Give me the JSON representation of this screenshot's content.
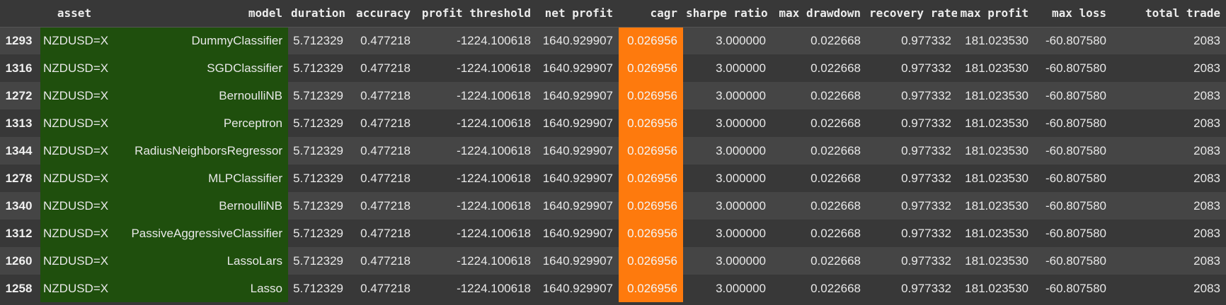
{
  "colors": {
    "background": "#383838",
    "row_alt": "#454545",
    "highlight_green": "#1f4f0d",
    "highlight_orange": "#fe7a0d"
  },
  "columns": [
    "",
    "asset",
    "model",
    "duration",
    "accuracy",
    "profit threshold",
    "net profit",
    "cagr",
    "sharpe ratio",
    "max drawdown",
    "recovery rate",
    "max profit",
    "max loss",
    "total trade"
  ],
  "rows": [
    {
      "index": "1293",
      "asset": "NZDUSD=X",
      "model": "DummyClassifier",
      "duration": "5.712329",
      "accuracy": "0.477218",
      "profit_threshold": "-1224.100618",
      "net_profit": "1640.929907",
      "cagr": "0.026956",
      "sharpe_ratio": "3.000000",
      "max_drawdown": "0.022668",
      "recovery_rate": "0.977332",
      "max_profit": "181.023530",
      "max_loss": "-60.807580",
      "total_trade": "2083"
    },
    {
      "index": "1316",
      "asset": "NZDUSD=X",
      "model": "SGDClassifier",
      "duration": "5.712329",
      "accuracy": "0.477218",
      "profit_threshold": "-1224.100618",
      "net_profit": "1640.929907",
      "cagr": "0.026956",
      "sharpe_ratio": "3.000000",
      "max_drawdown": "0.022668",
      "recovery_rate": "0.977332",
      "max_profit": "181.023530",
      "max_loss": "-60.807580",
      "total_trade": "2083"
    },
    {
      "index": "1272",
      "asset": "NZDUSD=X",
      "model": "BernoulliNB",
      "duration": "5.712329",
      "accuracy": "0.477218",
      "profit_threshold": "-1224.100618",
      "net_profit": "1640.929907",
      "cagr": "0.026956",
      "sharpe_ratio": "3.000000",
      "max_drawdown": "0.022668",
      "recovery_rate": "0.977332",
      "max_profit": "181.023530",
      "max_loss": "-60.807580",
      "total_trade": "2083"
    },
    {
      "index": "1313",
      "asset": "NZDUSD=X",
      "model": "Perceptron",
      "duration": "5.712329",
      "accuracy": "0.477218",
      "profit_threshold": "-1224.100618",
      "net_profit": "1640.929907",
      "cagr": "0.026956",
      "sharpe_ratio": "3.000000",
      "max_drawdown": "0.022668",
      "recovery_rate": "0.977332",
      "max_profit": "181.023530",
      "max_loss": "-60.807580",
      "total_trade": "2083"
    },
    {
      "index": "1344",
      "asset": "NZDUSD=X",
      "model": "RadiusNeighborsRegressor",
      "duration": "5.712329",
      "accuracy": "0.477218",
      "profit_threshold": "-1224.100618",
      "net_profit": "1640.929907",
      "cagr": "0.026956",
      "sharpe_ratio": "3.000000",
      "max_drawdown": "0.022668",
      "recovery_rate": "0.977332",
      "max_profit": "181.023530",
      "max_loss": "-60.807580",
      "total_trade": "2083"
    },
    {
      "index": "1278",
      "asset": "NZDUSD=X",
      "model": "MLPClassifier",
      "duration": "5.712329",
      "accuracy": "0.477218",
      "profit_threshold": "-1224.100618",
      "net_profit": "1640.929907",
      "cagr": "0.026956",
      "sharpe_ratio": "3.000000",
      "max_drawdown": "0.022668",
      "recovery_rate": "0.977332",
      "max_profit": "181.023530",
      "max_loss": "-60.807580",
      "total_trade": "2083"
    },
    {
      "index": "1340",
      "asset": "NZDUSD=X",
      "model": "BernoulliNB",
      "duration": "5.712329",
      "accuracy": "0.477218",
      "profit_threshold": "-1224.100618",
      "net_profit": "1640.929907",
      "cagr": "0.026956",
      "sharpe_ratio": "3.000000",
      "max_drawdown": "0.022668",
      "recovery_rate": "0.977332",
      "max_profit": "181.023530",
      "max_loss": "-60.807580",
      "total_trade": "2083"
    },
    {
      "index": "1312",
      "asset": "NZDUSD=X",
      "model": "PassiveAggressiveClassifier",
      "duration": "5.712329",
      "accuracy": "0.477218",
      "profit_threshold": "-1224.100618",
      "net_profit": "1640.929907",
      "cagr": "0.026956",
      "sharpe_ratio": "3.000000",
      "max_drawdown": "0.022668",
      "recovery_rate": "0.977332",
      "max_profit": "181.023530",
      "max_loss": "-60.807580",
      "total_trade": "2083"
    },
    {
      "index": "1260",
      "asset": "NZDUSD=X",
      "model": "LassoLars",
      "duration": "5.712329",
      "accuracy": "0.477218",
      "profit_threshold": "-1224.100618",
      "net_profit": "1640.929907",
      "cagr": "0.026956",
      "sharpe_ratio": "3.000000",
      "max_drawdown": "0.022668",
      "recovery_rate": "0.977332",
      "max_profit": "181.023530",
      "max_loss": "-60.807580",
      "total_trade": "2083"
    },
    {
      "index": "1258",
      "asset": "NZDUSD=X",
      "model": "Lasso",
      "duration": "5.712329",
      "accuracy": "0.477218",
      "profit_threshold": "-1224.100618",
      "net_profit": "1640.929907",
      "cagr": "0.026956",
      "sharpe_ratio": "3.000000",
      "max_drawdown": "0.022668",
      "recovery_rate": "0.977332",
      "max_profit": "181.023530",
      "max_loss": "-60.807580",
      "total_trade": "2083"
    }
  ]
}
